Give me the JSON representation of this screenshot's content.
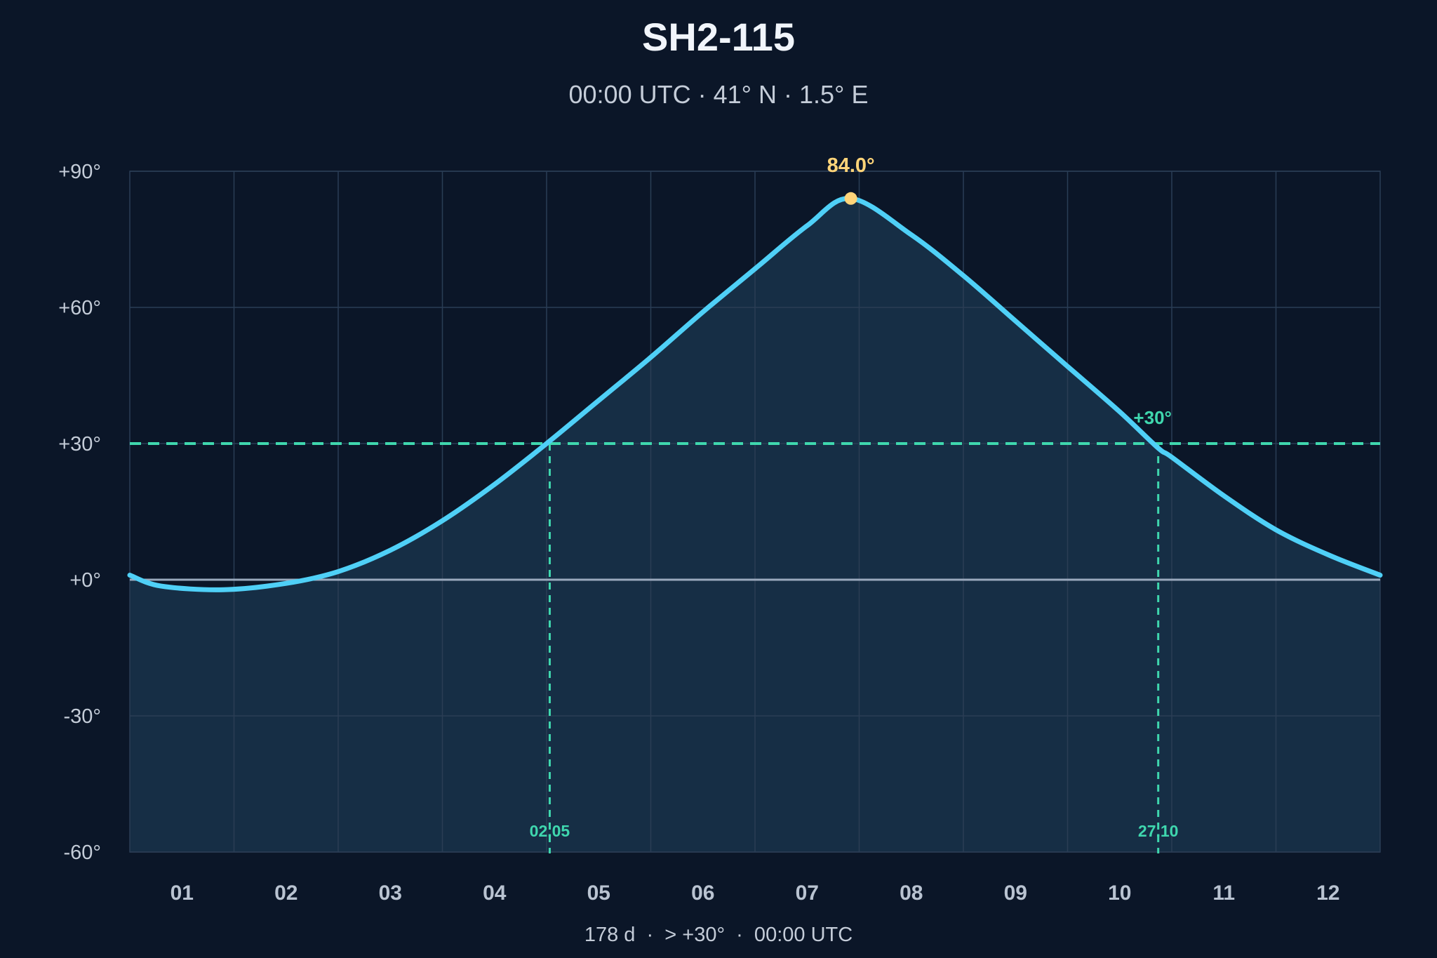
{
  "chart_data": {
    "type": "area",
    "title": "SH2-115",
    "subtitle": "00:00 UTC · 41° N · 1.5° E",
    "x_ticks": [
      "01",
      "02",
      "03",
      "04",
      "05",
      "06",
      "07",
      "08",
      "09",
      "10",
      "11",
      "12"
    ],
    "y_ticks": [
      "+90°",
      "+60°",
      "+30°",
      "+0°",
      "-30°",
      "-60°"
    ],
    "ylim": [
      -60,
      90
    ],
    "xlim_months": [
      0.5,
      12.5
    ],
    "grid": true,
    "series": [
      {
        "x_month": [
          0.5,
          0.8,
          1.4,
          2.0,
          2.5,
          3.0,
          3.5,
          4.0,
          4.5,
          5.0,
          5.5,
          6.0,
          6.5,
          7.0,
          7.42,
          8.0,
          8.5,
          9.0,
          9.5,
          10.0,
          10.37,
          10.5,
          11.0,
          11.5,
          12.0,
          12.5
        ],
        "y": [
          1,
          -1.4,
          -2.2,
          -0.8,
          1.8,
          6.5,
          13,
          21,
          30,
          39.5,
          49,
          59,
          68.5,
          78,
          84,
          76,
          67,
          57,
          47,
          37,
          29,
          27,
          18.5,
          11,
          5.5,
          1
        ]
      }
    ],
    "peak": {
      "label": "84.0°",
      "x_month": 7.42,
      "y": 84.0
    },
    "threshold": {
      "value": 30,
      "label": "+30°"
    },
    "crossings": [
      {
        "label": "02.05",
        "x_month": 4.53
      },
      {
        "label": "27.10",
        "x_month": 10.37
      }
    ],
    "footer": "178 d  ·  > +30°  ·  00:00 UTC",
    "colors": {
      "background": "#0b1628",
      "plot_fill": "#162e45",
      "curve": "#4fd0f7",
      "peak": "#ffd479",
      "threshold": "#3fd7ae",
      "zero_line": "#9aa9bd",
      "grid": "#2a3d55"
    }
  }
}
